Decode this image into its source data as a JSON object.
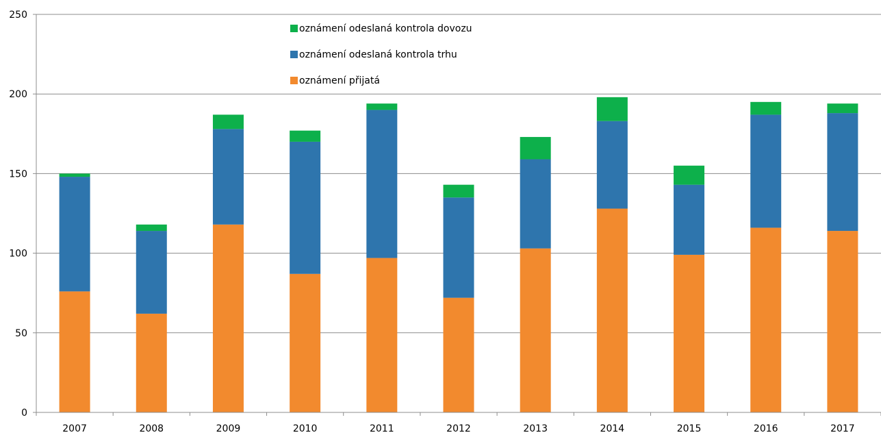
{
  "chart_data": {
    "type": "bar",
    "stacked": true,
    "categories": [
      "2007",
      "2008",
      "2009",
      "2010",
      "2011",
      "2012",
      "2013",
      "2014",
      "2015",
      "2016",
      "2017"
    ],
    "series": [
      {
        "name": "oznámení přijatá",
        "color": "#F28A2E",
        "values": [
          76,
          62,
          118,
          87,
          97,
          72,
          103,
          128,
          99,
          116,
          114
        ]
      },
      {
        "name": "oznámení odeslaná kontrola trhu",
        "color": "#2E75AD",
        "values": [
          72,
          52,
          60,
          83,
          93,
          63,
          56,
          55,
          44,
          71,
          74
        ]
      },
      {
        "name": "oznámení odeslaná kontrola dovozu",
        "color": "#0DB04B",
        "values": [
          2,
          4,
          9,
          7,
          4,
          8,
          14,
          15,
          12,
          8,
          6
        ]
      }
    ],
    "ylim": [
      0,
      250
    ],
    "yticks": [
      0,
      50,
      100,
      150,
      200,
      250
    ],
    "grid": true,
    "legend_position": "top-center",
    "legend_order": [
      "oznámení odeslaná kontrola dovozu",
      "oznámení odeslaná kontrola trhu",
      "oznámení přijatá"
    ],
    "title": "",
    "xlabel": "",
    "ylabel": ""
  }
}
